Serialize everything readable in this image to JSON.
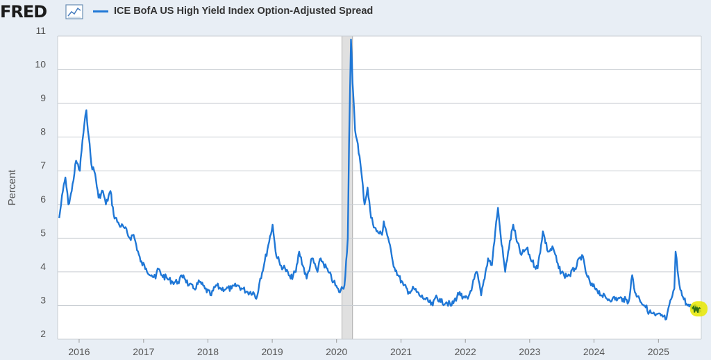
{
  "header": {
    "logo_text": "FRED",
    "logo_icon": "line-chart-icon",
    "legend_label": "ICE BofA US High Yield Index Option-Adjusted Spread"
  },
  "chart_data": {
    "type": "line",
    "title": "",
    "xlabel": "",
    "ylabel": "Percent",
    "ylim": [
      2,
      11
    ],
    "y_ticks": [
      2,
      3,
      4,
      5,
      6,
      7,
      8,
      9,
      10,
      11
    ],
    "x_range": [
      "2015-09",
      "2025-09"
    ],
    "x_ticks": [
      "2016",
      "2017",
      "2018",
      "2019",
      "2020",
      "2021",
      "2022",
      "2023",
      "2024",
      "2025"
    ],
    "grid": "horizontal",
    "recession_shading": [
      {
        "start": "2020-02",
        "end": "2020-04"
      }
    ],
    "colors": {
      "series": "#1f77d6",
      "grid": "#c9ced3",
      "recession": "#e0e0e0",
      "highlight": "#e8e800",
      "highlight_line": "#2d6e14"
    },
    "series": [
      {
        "name": "ICE BofA US High Yield Index Option-Adjusted Spread",
        "points": [
          [
            "2015-09-10",
            5.6
          ],
          [
            "2015-10-01",
            6.4
          ],
          [
            "2015-10-15",
            6.8
          ],
          [
            "2015-11-01",
            6.0
          ],
          [
            "2015-11-20",
            6.4
          ],
          [
            "2015-12-15",
            7.3
          ],
          [
            "2016-01-05",
            7.0
          ],
          [
            "2016-01-20",
            7.9
          ],
          [
            "2016-02-11",
            8.8
          ],
          [
            "2016-02-25",
            8.0
          ],
          [
            "2016-03-10",
            7.2
          ],
          [
            "2016-04-01",
            6.9
          ],
          [
            "2016-04-20",
            6.2
          ],
          [
            "2016-05-15",
            6.4
          ],
          [
            "2016-06-01",
            6.0
          ],
          [
            "2016-06-27",
            6.4
          ],
          [
            "2016-07-15",
            5.7
          ],
          [
            "2016-08-15",
            5.4
          ],
          [
            "2016-09-15",
            5.3
          ],
          [
            "2016-10-15",
            5.0
          ],
          [
            "2016-11-05",
            5.1
          ],
          [
            "2016-11-20",
            4.8
          ],
          [
            "2016-12-15",
            4.3
          ],
          [
            "2017-01-15",
            4.1
          ],
          [
            "2017-02-15",
            3.9
          ],
          [
            "2017-03-10",
            3.8
          ],
          [
            "2017-03-22",
            4.1
          ],
          [
            "2017-04-15",
            3.9
          ],
          [
            "2017-05-15",
            3.8
          ],
          [
            "2017-06-15",
            3.7
          ],
          [
            "2017-07-15",
            3.7
          ],
          [
            "2017-08-15",
            3.9
          ],
          [
            "2017-09-15",
            3.6
          ],
          [
            "2017-10-15",
            3.5
          ],
          [
            "2017-11-15",
            3.7
          ],
          [
            "2017-12-15",
            3.5
          ],
          [
            "2018-01-20",
            3.3
          ],
          [
            "2018-02-15",
            3.6
          ],
          [
            "2018-03-15",
            3.5
          ],
          [
            "2018-04-15",
            3.5
          ],
          [
            "2018-05-15",
            3.5
          ],
          [
            "2018-06-15",
            3.6
          ],
          [
            "2018-07-15",
            3.5
          ],
          [
            "2018-08-15",
            3.4
          ],
          [
            "2018-09-15",
            3.4
          ],
          [
            "2018-10-03",
            3.2
          ],
          [
            "2018-10-25",
            3.8
          ],
          [
            "2018-11-15",
            4.2
          ],
          [
            "2018-12-10",
            4.8
          ],
          [
            "2019-01-03",
            5.4
          ],
          [
            "2019-01-20",
            4.6
          ],
          [
            "2019-02-15",
            4.2
          ],
          [
            "2019-03-15",
            4.1
          ],
          [
            "2019-04-15",
            3.8
          ],
          [
            "2019-05-15",
            4.0
          ],
          [
            "2019-06-03",
            4.6
          ],
          [
            "2019-07-15",
            3.8
          ],
          [
            "2019-08-15",
            4.4
          ],
          [
            "2019-09-15",
            4.0
          ],
          [
            "2019-10-03",
            4.4
          ],
          [
            "2019-11-15",
            4.0
          ],
          [
            "2019-12-15",
            3.7
          ],
          [
            "2020-01-15",
            3.4
          ],
          [
            "2020-02-15",
            3.6
          ],
          [
            "2020-03-05",
            5.0
          ],
          [
            "2020-03-12",
            7.8
          ],
          [
            "2020-03-23",
            10.9
          ],
          [
            "2020-04-01",
            9.6
          ],
          [
            "2020-04-15",
            8.2
          ],
          [
            "2020-05-01",
            7.8
          ],
          [
            "2020-05-20",
            7.0
          ],
          [
            "2020-06-08",
            6.0
          ],
          [
            "2020-06-25",
            6.5
          ],
          [
            "2020-07-15",
            5.6
          ],
          [
            "2020-08-15",
            5.2
          ],
          [
            "2020-09-15",
            5.1
          ],
          [
            "2020-09-25",
            5.5
          ],
          [
            "2020-10-20",
            5.0
          ],
          [
            "2020-11-15",
            4.3
          ],
          [
            "2020-12-15",
            3.9
          ],
          [
            "2021-01-15",
            3.6
          ],
          [
            "2021-02-15",
            3.4
          ],
          [
            "2021-03-15",
            3.5
          ],
          [
            "2021-04-15",
            3.3
          ],
          [
            "2021-05-15",
            3.2
          ],
          [
            "2021-06-30",
            3.0
          ],
          [
            "2021-07-20",
            3.3
          ],
          [
            "2021-08-15",
            3.1
          ],
          [
            "2021-09-15",
            3.1
          ],
          [
            "2021-10-15",
            3.0
          ],
          [
            "2021-11-30",
            3.4
          ],
          [
            "2021-12-15",
            3.2
          ],
          [
            "2022-01-15",
            3.2
          ],
          [
            "2022-02-10",
            3.6
          ],
          [
            "2022-03-07",
            4.0
          ],
          [
            "2022-04-01",
            3.3
          ],
          [
            "2022-05-10",
            4.4
          ],
          [
            "2022-06-01",
            4.2
          ],
          [
            "2022-06-20",
            5.2
          ],
          [
            "2022-07-05",
            5.9
          ],
          [
            "2022-07-20",
            5.1
          ],
          [
            "2022-08-15",
            4.0
          ],
          [
            "2022-09-01",
            4.6
          ],
          [
            "2022-09-30",
            5.4
          ],
          [
            "2022-10-20",
            4.9
          ],
          [
            "2022-11-15",
            4.5
          ],
          [
            "2022-12-15",
            4.7
          ],
          [
            "2023-01-15",
            4.3
          ],
          [
            "2023-02-15",
            4.1
          ],
          [
            "2023-03-17",
            5.2
          ],
          [
            "2023-04-15",
            4.6
          ],
          [
            "2023-05-15",
            4.7
          ],
          [
            "2023-06-15",
            4.1
          ],
          [
            "2023-07-15",
            3.9
          ],
          [
            "2023-08-15",
            3.9
          ],
          [
            "2023-09-15",
            4.1
          ],
          [
            "2023-10-25",
            4.5
          ],
          [
            "2023-11-15",
            4.0
          ],
          [
            "2023-12-15",
            3.6
          ],
          [
            "2024-01-15",
            3.5
          ],
          [
            "2024-02-15",
            3.3
          ],
          [
            "2024-03-15",
            3.2
          ],
          [
            "2024-04-15",
            3.2
          ],
          [
            "2024-05-15",
            3.2
          ],
          [
            "2024-06-15",
            3.2
          ],
          [
            "2024-07-15",
            3.1
          ],
          [
            "2024-08-05",
            3.9
          ],
          [
            "2024-08-20",
            3.4
          ],
          [
            "2024-09-15",
            3.2
          ],
          [
            "2024-10-15",
            3.0
          ],
          [
            "2024-11-10",
            2.8
          ],
          [
            "2024-12-15",
            2.7
          ],
          [
            "2025-01-15",
            2.7
          ],
          [
            "2025-02-15",
            2.6
          ],
          [
            "2025-03-15",
            3.2
          ],
          [
            "2025-04-01",
            3.5
          ],
          [
            "2025-04-08",
            4.6
          ],
          [
            "2025-04-25",
            3.8
          ],
          [
            "2025-05-15",
            3.3
          ],
          [
            "2025-06-15",
            3.0
          ],
          [
            "2025-07-15",
            2.9
          ],
          [
            "2025-08-01",
            3.0
          ],
          [
            "2025-08-15",
            2.9
          ],
          [
            "2025-08-28",
            2.8
          ]
        ]
      }
    ]
  }
}
